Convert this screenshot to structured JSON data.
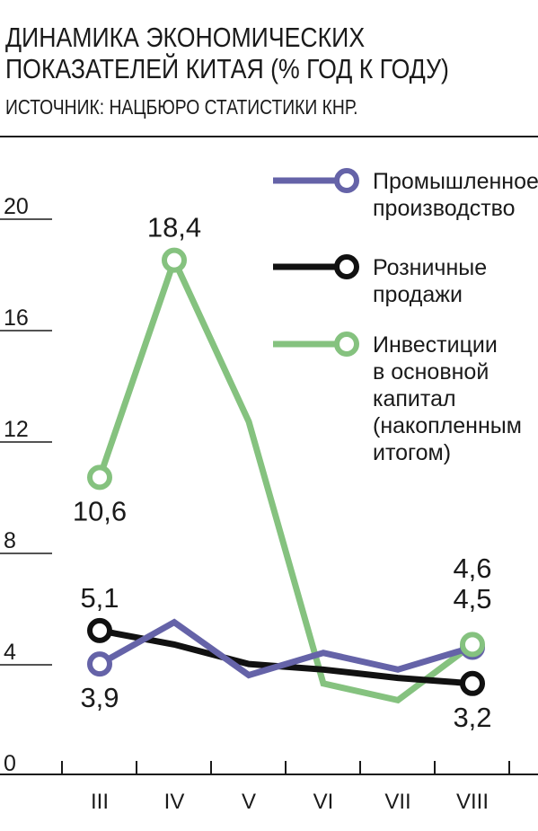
{
  "header": {
    "title_line1": "ДИНАМИКА ЭКОНОМИЧЕСКИХ",
    "title_line2": "ПОКАЗАТЕЛЕЙ КИТАЯ (% ГОД К ГОДУ)",
    "subtitle": "ИСТОЧНИК: НАЦБЮРО СТАТИСТИКИ КНР."
  },
  "chart_data": {
    "type": "line",
    "title": "ДИНАМИКА ЭКОНОМИЧЕСКИХ ПОКАЗАТЕЛЕЙ КИТАЯ (% ГОД К ГОДУ)",
    "xlabel": "",
    "ylabel": "",
    "ylim": [
      0,
      20
    ],
    "yticks": [
      0,
      4,
      8,
      12,
      16,
      20
    ],
    "grid": false,
    "legend_position": "top-right",
    "categories": [
      "III",
      "IV",
      "V",
      "VI",
      "VII",
      "VIII"
    ],
    "series": [
      {
        "name": "Промышленное производство",
        "legend_lines": [
          "Промышленное",
          "производство"
        ],
        "color": "#6563a8",
        "values": [
          3.9,
          5.4,
          3.5,
          4.3,
          3.7,
          4.5
        ],
        "labels": [
          {
            "index": 0,
            "text": "3,9",
            "position": "below"
          }
        ]
      },
      {
        "name": "Розничные продажи",
        "legend_lines": [
          "Розничные",
          "продажи"
        ],
        "color": "#111111",
        "values": [
          5.1,
          4.6,
          3.9,
          3.7,
          3.4,
          3.2
        ],
        "labels": [
          {
            "index": 0,
            "text": "5,1",
            "position": "above"
          },
          {
            "index": 5,
            "text": "3,2",
            "position": "below"
          }
        ]
      },
      {
        "name": "Инвестиции в основной капитал (накопленным итогом)",
        "legend_lines": [
          "Инвестиции",
          "в основной",
          "капитал",
          "(накопленным",
          "итогом)"
        ],
        "color": "#85c27f",
        "values": [
          10.6,
          18.4,
          12.6,
          3.2,
          2.6,
          4.6
        ],
        "labels": [
          {
            "index": 0,
            "text": "10,6",
            "position": "below"
          },
          {
            "index": 1,
            "text": "18,4",
            "position": "above"
          }
        ]
      }
    ],
    "extra_labels": [
      {
        "text": "4,6",
        "series": 2,
        "index": 5
      },
      {
        "text": "4,5",
        "series": 0,
        "index": 5
      }
    ]
  }
}
